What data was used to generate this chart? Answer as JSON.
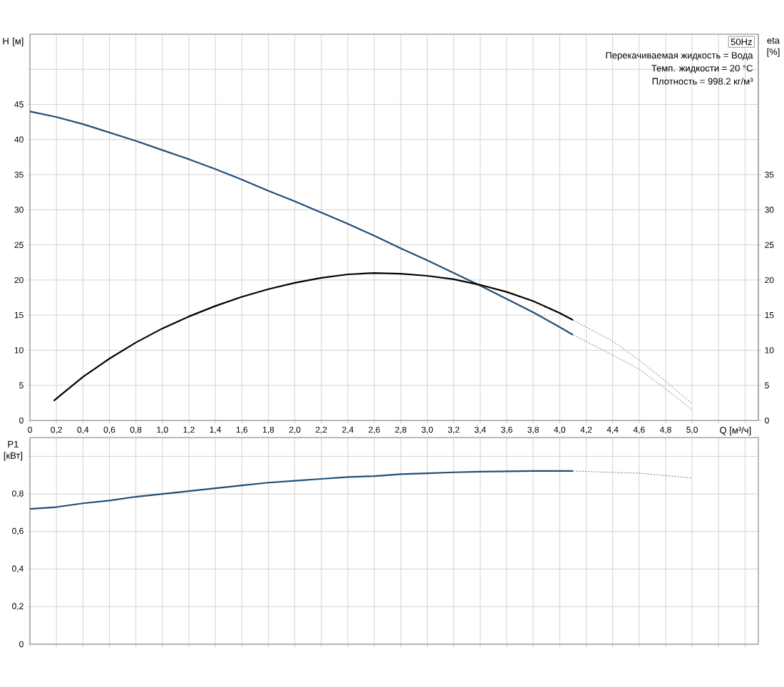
{
  "chart_data": [
    {
      "type": "line",
      "xlabel": "Q [м³/ч]",
      "ylabel": "H [м]",
      "y2label": "eta [%]",
      "xlim": [
        0,
        5.5
      ],
      "ylim": [
        0,
        55
      ],
      "y2lim": [
        0,
        55
      ],
      "grid": true,
      "xticks": [
        0,
        {
          "value": 0.2,
          "label": "0,2"
        },
        {
          "value": 0.4,
          "label": "0,4"
        },
        {
          "value": 0.6,
          "label": "0,6"
        },
        {
          "value": 0.8,
          "label": "0,8"
        },
        {
          "value": 1.0,
          "label": "1,0"
        },
        {
          "value": 1.2,
          "label": "1,2"
        },
        {
          "value": 1.4,
          "label": "1,4"
        },
        {
          "value": 1.6,
          "label": "1,6"
        },
        {
          "value": 1.8,
          "label": "1,8"
        },
        {
          "value": 2.0,
          "label": "2,0"
        },
        {
          "value": 2.2,
          "label": "2,2"
        },
        {
          "value": 2.4,
          "label": "2,4"
        },
        {
          "value": 2.6,
          "label": "2,6"
        },
        {
          "value": 2.8,
          "label": "2,8"
        },
        {
          "value": 3.0,
          "label": "3,0"
        },
        {
          "value": 3.2,
          "label": "3,2"
        },
        {
          "value": 3.4,
          "label": "3,4"
        },
        {
          "value": 3.6,
          "label": "3,6"
        },
        {
          "value": 3.8,
          "label": "3,8"
        },
        {
          "value": 4.0,
          "label": "4,0"
        },
        {
          "value": 4.2,
          "label": "4,2"
        },
        {
          "value": 4.4,
          "label": "4,4"
        },
        {
          "value": 4.6,
          "label": "4,6"
        },
        {
          "value": 4.8,
          "label": "4,8"
        },
        {
          "value": 5.0,
          "label": "5,0"
        },
        {
          "value": 5.2,
          "label": null
        },
        {
          "value": 5.4,
          "label": null
        }
      ],
      "yticks": [
        0,
        5,
        10,
        15,
        20,
        25,
        30,
        35,
        40,
        45,
        {
          "value": 50,
          "label": null
        }
      ],
      "y2ticks": [
        0,
        5,
        10,
        15,
        20,
        25,
        30,
        35
      ],
      "annotations": [
        "50Hz",
        "Перекачиваемая жидкость = Вода",
        "Темп. жидкости = 20 °C",
        "Плотность = 998.2 кг/м³"
      ],
      "series": [
        {
          "color": "#1f4e79",
          "line_style": "solid",
          "x": [
            0,
            0.2,
            0.4,
            0.6,
            0.8,
            1.0,
            1.2,
            1.4,
            1.6,
            1.8,
            2.0,
            2.2,
            2.4,
            2.6,
            2.8,
            3.0,
            3.2,
            3.4,
            3.6,
            3.8,
            4.0,
            4.1
          ],
          "values": [
            44,
            43.2,
            42.2,
            41,
            39.8,
            38.5,
            37.2,
            35.8,
            34.3,
            32.7,
            31.2,
            29.6,
            28,
            26.3,
            24.5,
            22.8,
            21,
            19.2,
            17.3,
            15.4,
            13.3,
            12.2
          ]
        },
        {
          "color": "#808080",
          "line_style": "dotted",
          "x": [
            4.1,
            4.4,
            4.6,
            4.8,
            5.0
          ],
          "values": [
            12.2,
            9.3,
            7.3,
            4.5,
            1.5
          ]
        },
        {
          "color": "#000000",
          "line_style": "solid",
          "axis": "y2",
          "x": [
            0.18,
            0.4,
            0.6,
            0.8,
            1.0,
            1.2,
            1.4,
            1.6,
            1.8,
            2.0,
            2.2,
            2.4,
            2.6,
            2.8,
            3.0,
            3.2,
            3.4,
            3.6,
            3.8,
            4.0,
            4.1
          ],
          "values": [
            2.8,
            6.2,
            8.8,
            11.1,
            13.1,
            14.8,
            16.3,
            17.6,
            18.7,
            19.6,
            20.3,
            20.8,
            21,
            20.9,
            20.6,
            20.1,
            19.3,
            18.3,
            17,
            15.3,
            14.3
          ]
        },
        {
          "color": "#808080",
          "line_style": "dotted",
          "axis": "y2",
          "x": [
            4.1,
            4.4,
            4.6,
            4.8,
            5.0
          ],
          "values": [
            14.3,
            11.3,
            8.6,
            5.6,
            2.4
          ]
        }
      ]
    },
    {
      "type": "line",
      "ylabel": "P1 [кВт]",
      "xlim": [
        0,
        5.5
      ],
      "ylim": [
        0,
        1.1
      ],
      "grid": true,
      "tick_labels": "y",
      "xticks": [
        0,
        0.2,
        0.4,
        0.6,
        0.8,
        1.0,
        1.2,
        1.4,
        1.6,
        1.8,
        2.0,
        2.2,
        2.4,
        2.6,
        2.8,
        3.0,
        3.2,
        3.4,
        3.6,
        3.8,
        4.0,
        4.2,
        4.4,
        4.6,
        4.8,
        5.0,
        5.2,
        5.4
      ],
      "yticks": [
        0,
        {
          "value": 0.2,
          "label": "0,2"
        },
        {
          "value": 0.4,
          "label": "0,4"
        },
        {
          "value": 0.6,
          "label": "0,6"
        },
        {
          "value": 0.8,
          "label": "0,8"
        },
        {
          "value": 1.0,
          "label": null
        }
      ],
      "series": [
        {
          "color": "#1f4e79",
          "line_style": "solid",
          "x": [
            0,
            0.2,
            0.4,
            0.6,
            0.8,
            1.0,
            1.2,
            1.4,
            1.6,
            1.8,
            2.0,
            2.2,
            2.4,
            2.6,
            2.8,
            3.0,
            3.2,
            3.4,
            3.6,
            3.8,
            4.0,
            4.1
          ],
          "values": [
            0.72,
            0.73,
            0.75,
            0.765,
            0.785,
            0.8,
            0.815,
            0.83,
            0.845,
            0.86,
            0.87,
            0.88,
            0.89,
            0.895,
            0.905,
            0.91,
            0.915,
            0.918,
            0.92,
            0.922,
            0.922,
            0.922
          ]
        },
        {
          "color": "#808080",
          "line_style": "dotted",
          "x": [
            4.1,
            4.6,
            5.0
          ],
          "values": [
            0.922,
            0.91,
            0.885
          ]
        }
      ]
    }
  ]
}
